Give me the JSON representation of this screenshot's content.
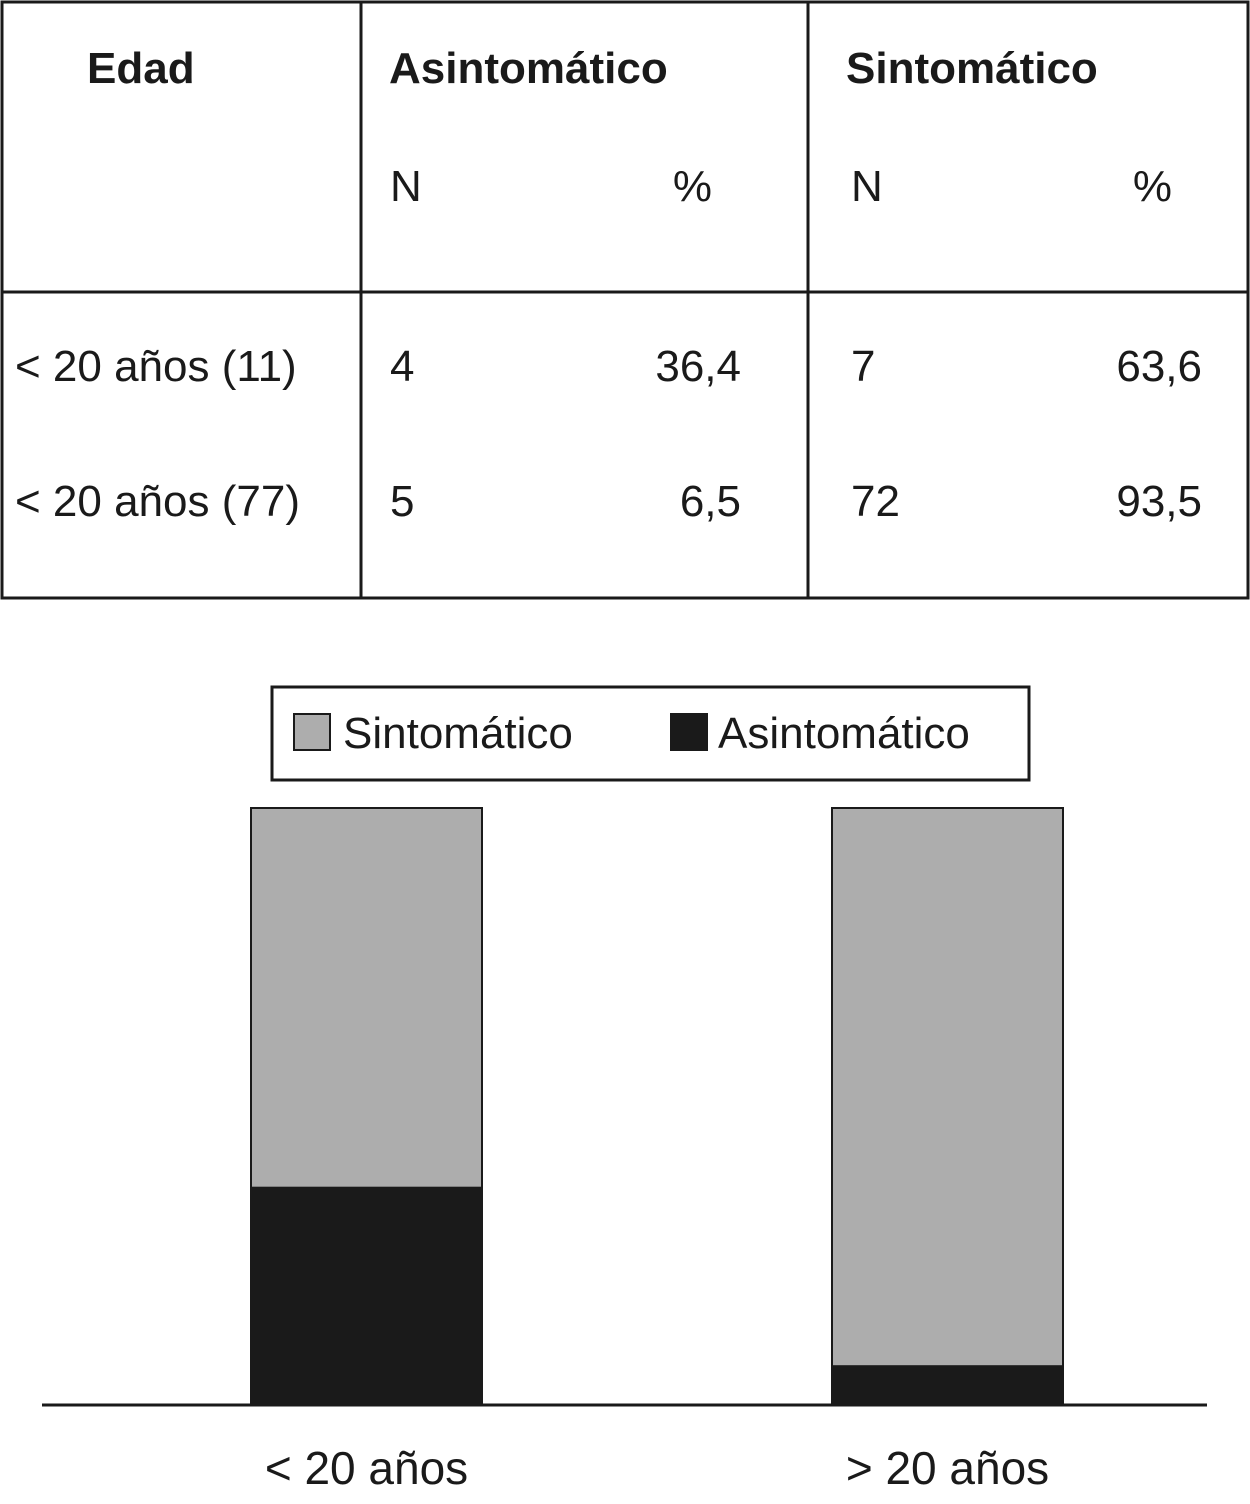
{
  "table": {
    "header": [
      "Edad",
      "Asintomático",
      "Sintomático"
    ],
    "subheader": [
      "N",
      "%",
      "N",
      "%"
    ],
    "rows": [
      [
        "< 20 años (11)",
        "4",
        "36,4",
        "7",
        "63,6"
      ],
      [
        "< 20 años (77)",
        "5",
        "6,5",
        "72",
        "93,5"
      ]
    ]
  },
  "chart_data": {
    "type": "bar",
    "stacked": true,
    "categories": [
      "< 20 años",
      "> 20 años"
    ],
    "series": [
      {
        "name": "Sintomático",
        "color": "#adadad",
        "values": [
          63.6,
          93.5
        ]
      },
      {
        "name": "Asintomático",
        "color": "#1a1a1a",
        "values": [
          36.4,
          6.5
        ]
      }
    ],
    "ylim": [
      0,
      100
    ]
  }
}
